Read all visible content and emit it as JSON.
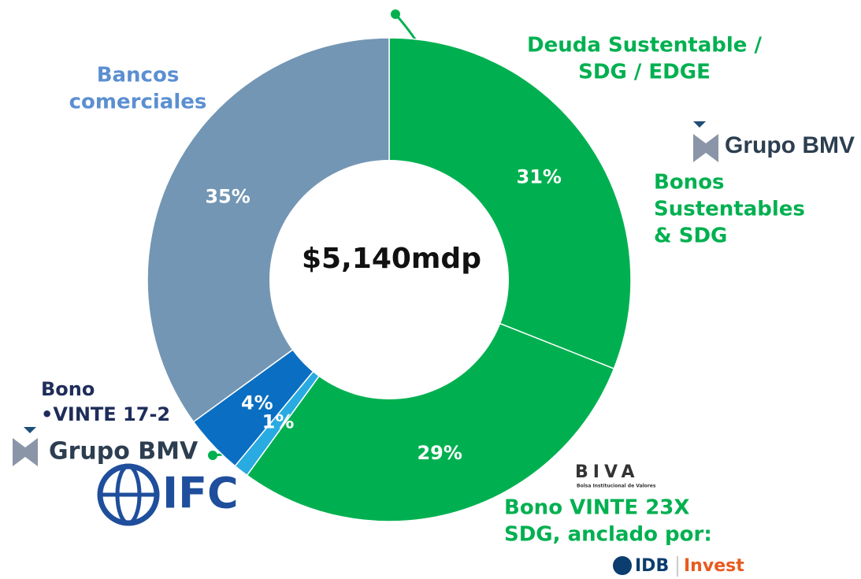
{
  "chart_data": {
    "type": "donut",
    "center_label": "$5,140mdp",
    "categories": [
      "Deuda Sustentable 1",
      "Deuda Sustentable 2",
      "Bono VINTE 17-2 a",
      "Bono VINTE 17-2 b",
      "Bancos comerciales"
    ],
    "values": [
      31,
      29,
      1,
      4,
      35
    ],
    "value_labels": [
      "31%",
      "29%",
      "1%",
      "4%",
      "35%"
    ],
    "colors": [
      "#00b050",
      "#00b050",
      "#29aae1",
      "#0a6fc2",
      "#7396b4"
    ],
    "annotations": {
      "deuda": [
        "Deuda Sustentable /",
        "SDG / EDGE"
      ],
      "bancos": [
        "Bancos",
        "comerciales"
      ],
      "bonos": [
        "Bonos",
        "Sustentables",
        "& SDG"
      ],
      "vinte17": [
        "Bono",
        "•VINTE 17-2"
      ],
      "vinte23": [
        "Bono VINTE 23X",
        "SDG, anclado por:"
      ]
    },
    "logos": {
      "bmv": "Grupo BMV",
      "ifc": "IFC",
      "biva": "BIVA",
      "biva_sub": "Bolsa Institucional de Valores",
      "idb": "IDB",
      "invest": "Invest"
    }
  }
}
